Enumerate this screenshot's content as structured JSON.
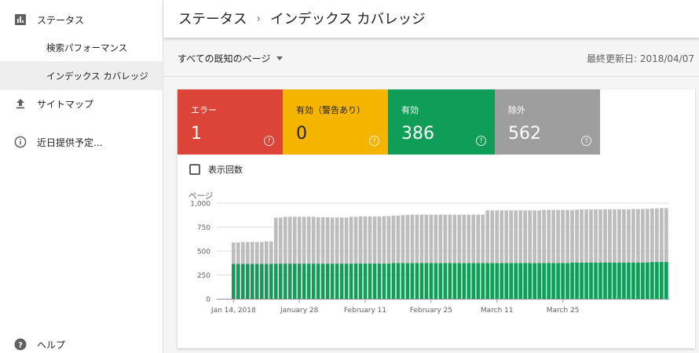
{
  "sidebar": {
    "items": [
      {
        "label": "ステータス",
        "icon": "bar-chart-icon"
      },
      {
        "label": "検索パフォーマンス"
      },
      {
        "label": "インデックス カバレッジ",
        "selected": true
      },
      {
        "label": "サイトマップ",
        "icon": "upload-icon"
      },
      {
        "label": "近日提供予定...",
        "icon": "info-icon"
      },
      {
        "label": "ヘルプ",
        "icon": "help-icon"
      }
    ]
  },
  "header": {
    "crumb1": "ステータス",
    "sep": "›",
    "crumb2": "インデックス カバレッジ"
  },
  "filter": {
    "label": "すべての既知のページ",
    "last_updated": "最終更新日: 2018/04/07"
  },
  "tiles": [
    {
      "label": "エラー",
      "value": "1",
      "color": "#db4437"
    },
    {
      "label": "有効（警告あり）",
      "value": "0",
      "color": "#f4b400"
    },
    {
      "label": "有効",
      "value": "386",
      "color": "#0f9d58"
    },
    {
      "label": "除外",
      "value": "562",
      "color": "#9e9e9e"
    }
  ],
  "help_glyph": "?",
  "impressions_label": "表示回数",
  "chart_data": {
    "type": "bar",
    "stacked": true,
    "ylabel": "ページ",
    "ylim": [
      0,
      1000
    ],
    "yticks": [
      "0",
      "250",
      "500",
      "750",
      "1,000"
    ],
    "xtick_labels": [
      "Jan 14, 2018",
      "January 28",
      "February 11",
      "February 25",
      "March 11",
      "March 25"
    ],
    "series": [
      {
        "color": "#0f9d58",
        "values": [
          365,
          365,
          365,
          365,
          365,
          365,
          365,
          365,
          365,
          368,
          368,
          368,
          368,
          368,
          368,
          368,
          368,
          368,
          368,
          368,
          368,
          368,
          368,
          368,
          368,
          368,
          370,
          370,
          370,
          370,
          370,
          370,
          370,
          370,
          375,
          375,
          375,
          375,
          375,
          375,
          375,
          375,
          375,
          375,
          375,
          375,
          375,
          375,
          375,
          375,
          375,
          375,
          375,
          375,
          375,
          375,
          375,
          375,
          375,
          375,
          375,
          375,
          375,
          375,
          375,
          375,
          375,
          375,
          375,
          375,
          375,
          375,
          380,
          380,
          380,
          380,
          380,
          380,
          380,
          380,
          380,
          380,
          380,
          380,
          380,
          380,
          380,
          380,
          380,
          386,
          386,
          386,
          386
        ]
      },
      {
        "color": "#bdbdbd",
        "values": [
          225,
          225,
          230,
          230,
          230,
          230,
          230,
          235,
          235,
          480,
          482,
          490,
          490,
          490,
          490,
          490,
          490,
          490,
          485,
          485,
          485,
          482,
          482,
          482,
          482,
          490,
          488,
          492,
          492,
          492,
          492,
          490,
          495,
          495,
          495,
          495,
          500,
          502,
          505,
          505,
          505,
          505,
          505,
          505,
          505,
          505,
          505,
          505,
          505,
          505,
          505,
          505,
          505,
          505,
          550,
          550,
          550,
          550,
          550,
          550,
          550,
          550,
          550,
          550,
          550,
          550,
          555,
          555,
          555,
          555,
          555,
          555,
          550,
          552,
          555,
          555,
          555,
          555,
          555,
          556,
          556,
          556,
          556,
          556,
          556,
          558,
          558,
          560,
          560,
          558,
          560,
          562,
          562
        ]
      }
    ]
  }
}
